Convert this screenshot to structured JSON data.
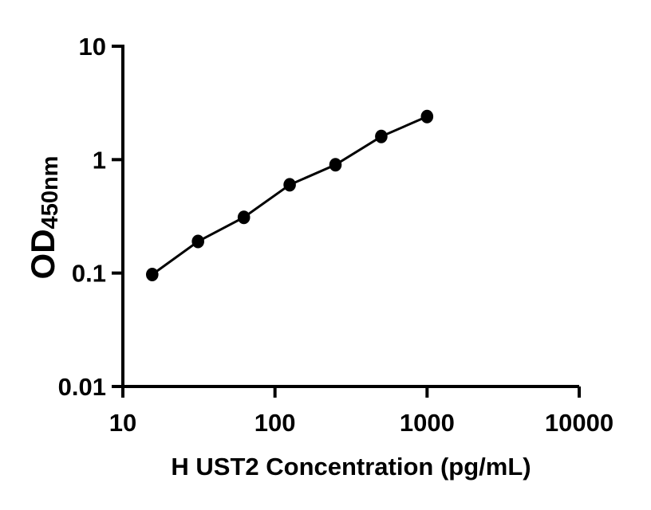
{
  "figure": {
    "background_color": "#ffffff",
    "foreground_color": "#000000"
  },
  "chart_data": {
    "type": "line",
    "title": "",
    "xlabel": "H UST2 Concentration (pg/mL)",
    "ylabel_main": "OD",
    "ylabel_sub": "450nm",
    "xscale": "log",
    "yscale": "log",
    "xlim": [
      10,
      10000
    ],
    "ylim": [
      0.01,
      10
    ],
    "x_ticks": [
      10,
      100,
      1000,
      10000
    ],
    "x_tick_labels": [
      "10",
      "100",
      "1000",
      "10000"
    ],
    "y_ticks": [
      0.01,
      0.1,
      1,
      10
    ],
    "y_tick_labels": [
      "0.01",
      "0.1",
      "1",
      "10"
    ],
    "grid": false,
    "legend": "none",
    "axis_color": "#000000",
    "series": [
      {
        "marker": "filled-circle",
        "color": "#000000",
        "x": [
          15.6,
          31.2,
          62.5,
          125,
          250,
          500,
          1000
        ],
        "y": [
          0.097,
          0.19,
          0.31,
          0.6,
          0.9,
          1.6,
          2.4
        ]
      }
    ]
  }
}
